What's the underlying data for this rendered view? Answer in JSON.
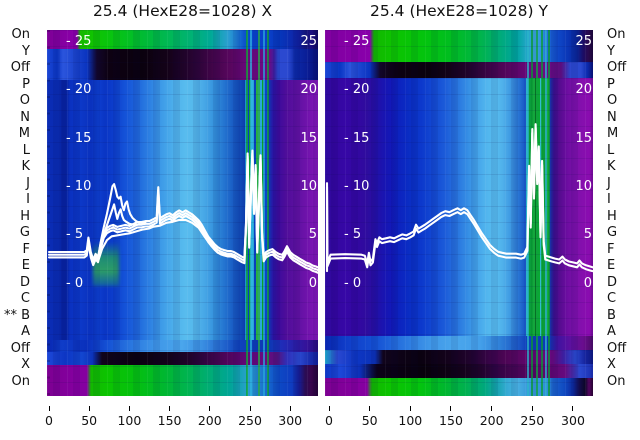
{
  "titles": {
    "left": "25.4 (HexE28=1028) X",
    "right": "25.4 (HexE28=1028) Y"
  },
  "colors": {
    "trace": "#ffffff",
    "inner_tick_text": "#ffffff",
    "axis_text": "#111111",
    "background": "#ffffff",
    "heat_blue": "#0a2cb4",
    "heat_green": "#0cc400",
    "heat_magenta": "#8a0cb0"
  },
  "axis_labels": {
    "left": [
      {
        "label": "On"
      },
      {
        "label": "Y"
      },
      {
        "label": "Off"
      },
      {
        "label": "P"
      },
      {
        "label": "O"
      },
      {
        "label": "N"
      },
      {
        "label": "M"
      },
      {
        "label": "L"
      },
      {
        "label": "K"
      },
      {
        "label": "J"
      },
      {
        "label": "I"
      },
      {
        "label": "H"
      },
      {
        "label": "G"
      },
      {
        "label": "F"
      },
      {
        "label": "E"
      },
      {
        "label": "D"
      },
      {
        "label": "C"
      },
      {
        "prefix": "**",
        "label": "B"
      },
      {
        "label": "A"
      },
      {
        "label": "Off"
      },
      {
        "label": "X"
      },
      {
        "label": "On"
      }
    ],
    "right": [
      {
        "label": "On"
      },
      {
        "label": "Y"
      },
      {
        "label": "Off"
      },
      {
        "label": "P"
      },
      {
        "label": "O"
      },
      {
        "label": "N"
      },
      {
        "label": "M"
      },
      {
        "label": "L"
      },
      {
        "label": "K"
      },
      {
        "label": "J"
      },
      {
        "label": "I"
      },
      {
        "label": "H"
      },
      {
        "label": "G"
      },
      {
        "label": "F"
      },
      {
        "label": "E"
      },
      {
        "label": "D"
      },
      {
        "label": "C"
      },
      {
        "label": "B"
      },
      {
        "label": "A"
      },
      {
        "label": "Off"
      },
      {
        "label": "X"
      },
      {
        "label": "On"
      }
    ]
  },
  "chart_data": [
    {
      "type": "heatmap",
      "title": "25.4 (HexE28=1028) X",
      "xlabel": "",
      "ylabel": "",
      "xlim": [
        -2.5,
        334.6
      ],
      "ylim_inner_scale": [
        -11.3,
        26.2
      ],
      "x_ticks": [
        0,
        50,
        100,
        150,
        200,
        250,
        300
      ],
      "y_axis": {
        "ticks": [
          {
            "left": "- 25",
            "right": "25",
            "value": 25
          },
          {
            "left": "- 20",
            "right": "20",
            "value": 20
          },
          {
            "left": "- 15",
            "right": "15",
            "value": 15
          },
          {
            "left": "- 10",
            "right": "10",
            "value": 10
          },
          {
            "left": "- 5",
            "right": "5",
            "value": 5
          },
          {
            "left": "- 0",
            "right": "0",
            "value": 0
          }
        ]
      },
      "line_series": [
        {
          "name": "trace-bundle-x",
          "offsets": [
            -0.28,
            0,
            0.28
          ],
          "points": [
            [
              0,
              3
            ],
            [
              44,
              3
            ],
            [
              47,
              3.2
            ],
            [
              49,
              4.5
            ],
            [
              52,
              3
            ],
            [
              55,
              2.2
            ],
            [
              58,
              2.8
            ],
            [
              61,
              2.5
            ],
            [
              64,
              3.8
            ],
            [
              68,
              5
            ],
            [
              72,
              5.5
            ],
            [
              76,
              5.7
            ],
            [
              80,
              5.8
            ],
            [
              85,
              5.6
            ],
            [
              90,
              5.7
            ],
            [
              95,
              5.8
            ],
            [
              100,
              5.7
            ],
            [
              105,
              5.9
            ],
            [
              110,
              6.1
            ],
            [
              115,
              6.1
            ],
            [
              120,
              6.2
            ],
            [
              125,
              6.2
            ],
            [
              130,
              6.4
            ],
            [
              134,
              6.6
            ],
            [
              135,
              8.2
            ],
            [
              136,
              9.7
            ],
            [
              137,
              8
            ],
            [
              138,
              6.5
            ],
            [
              142,
              6.7
            ],
            [
              146,
              6.9
            ],
            [
              150,
              7
            ],
            [
              154,
              6.8
            ],
            [
              158,
              7.1
            ],
            [
              162,
              7.3
            ],
            [
              166,
              7.1
            ],
            [
              170,
              7.3
            ],
            [
              174,
              7.1
            ],
            [
              178,
              6.9
            ],
            [
              182,
              6.6
            ],
            [
              186,
              6.3
            ],
            [
              190,
              5.8
            ],
            [
              194,
              5.2
            ],
            [
              198,
              4.6
            ],
            [
              202,
              4.2
            ],
            [
              206,
              3.8
            ],
            [
              210,
              3.5
            ],
            [
              214,
              3.3
            ],
            [
              218,
              3.2
            ],
            [
              222,
              3.1
            ],
            [
              226,
              3.1
            ],
            [
              230,
              3
            ],
            [
              234,
              2.8
            ],
            [
              240,
              2.5
            ],
            [
              243,
              2.4
            ],
            [
              245,
              6
            ],
            [
              247,
              13.2
            ],
            [
              249,
              4
            ],
            [
              251,
              9
            ],
            [
              253,
              13.5
            ],
            [
              255,
              7.5
            ],
            [
              257,
              12
            ],
            [
              259,
              3.5
            ],
            [
              261,
              8
            ],
            [
              263,
              13
            ],
            [
              265,
              5
            ],
            [
              267,
              2.6
            ],
            [
              270,
              3
            ],
            [
              274,
              3.2
            ],
            [
              278,
              3.3
            ],
            [
              282,
              3
            ],
            [
              286,
              2.8
            ],
            [
              290,
              2.7
            ],
            [
              293,
              3.1
            ],
            [
              296,
              3.6
            ],
            [
              300,
              3
            ],
            [
              304,
              2.7
            ],
            [
              308,
              2.5
            ],
            [
              312,
              2.3
            ],
            [
              316,
              2.1
            ],
            [
              320,
              1.9
            ],
            [
              324,
              1.8
            ],
            [
              328,
              1.6
            ],
            [
              332,
              1.5
            ],
            [
              335,
              1.4
            ]
          ]
        },
        {
          "name": "trace-peak-outer",
          "offsets": [
            0
          ],
          "points": [
            [
              61,
              2.5
            ],
            [
              64,
              4.2
            ],
            [
              68,
              5.8
            ],
            [
              72,
              7.2
            ],
            [
              76,
              8.8
            ],
            [
              79,
              10.1
            ],
            [
              81,
              10.3
            ],
            [
              83,
              9.7
            ],
            [
              85,
              9
            ],
            [
              87,
              8.8
            ],
            [
              89,
              9
            ],
            [
              91,
              8.1
            ],
            [
              93,
              7.6
            ],
            [
              95,
              8.3
            ],
            [
              97,
              8.5
            ],
            [
              99,
              7.7
            ],
            [
              101,
              7.2
            ],
            [
              104,
              6.8
            ],
            [
              108,
              6.5
            ],
            [
              112,
              6.3
            ],
            [
              116,
              6.3
            ],
            [
              120,
              6.3
            ]
          ]
        },
        {
          "name": "trace-peak-inner",
          "offsets": [
            0
          ],
          "points": [
            [
              61,
              2.5
            ],
            [
              66,
              4.6
            ],
            [
              71,
              5.8
            ],
            [
              76,
              7
            ],
            [
              81,
              8.2
            ],
            [
              83,
              7.4
            ],
            [
              85,
              6.7
            ],
            [
              87,
              7.3
            ],
            [
              89,
              7.7
            ],
            [
              91,
              7
            ],
            [
              93,
              6.6
            ],
            [
              96,
              6.4
            ],
            [
              100,
              6.2
            ],
            [
              105,
              6.1
            ],
            [
              110,
              6.1
            ]
          ]
        },
        {
          "name": "trace-low",
          "offsets": [
            0
          ],
          "points": [
            [
              61,
              2.3
            ],
            [
              66,
              3.6
            ],
            [
              72,
              4.5
            ],
            [
              78,
              4.9
            ],
            [
              85,
              5
            ],
            [
              92,
              5.1
            ],
            [
              100,
              5.2
            ],
            [
              108,
              5.4
            ],
            [
              116,
              5.6
            ],
            [
              124,
              5.7
            ],
            [
              130,
              5.9
            ],
            [
              138,
              6
            ],
            [
              146,
              6.3
            ],
            [
              154,
              6.4
            ],
            [
              162,
              6.6
            ],
            [
              170,
              6.6
            ],
            [
              178,
              6.3
            ],
            [
              186,
              5.8
            ],
            [
              194,
              4.8
            ],
            [
              202,
              3.9
            ],
            [
              210,
              3.2
            ],
            [
              218,
              3
            ],
            [
              226,
              2.9
            ],
            [
              232,
              2.8
            ]
          ]
        }
      ]
    },
    {
      "type": "heatmap",
      "title": "25.4 (HexE28=1028) Y",
      "xlabel": "",
      "ylabel": "",
      "xlim": [
        -4.9,
        324.6
      ],
      "ylim_inner_scale": [
        -11.3,
        26.2
      ],
      "x_ticks": [
        0,
        50,
        100,
        150,
        200,
        250,
        300
      ],
      "y_axis": {
        "ticks": [
          {
            "left": "- 25",
            "right": "25",
            "value": 25
          },
          {
            "left": "- 20",
            "right": "20",
            "value": 20
          },
          {
            "left": "- 15",
            "right": "15",
            "value": 15
          },
          {
            "left": "- 10",
            "right": "10",
            "value": 10
          },
          {
            "left": "- 5",
            "right": "5",
            "value": 5
          },
          {
            "left": "- 0",
            "right": "0",
            "value": 0
          }
        ]
      },
      "line_series": [
        {
          "name": "trace-bundle-y",
          "offsets": [
            -0.2,
            0.2
          ],
          "points": [
            [
              -2.5,
              1.5
            ],
            [
              -2.5,
              10.2
            ],
            [
              -2,
              2
            ],
            [
              2,
              2.8
            ],
            [
              20,
              2.85
            ],
            [
              40,
              2.8
            ],
            [
              44,
              2.7
            ],
            [
              47,
              1.9
            ],
            [
              49,
              3
            ],
            [
              51,
              2.1
            ],
            [
              54,
              2.4
            ],
            [
              57,
              4.4
            ],
            [
              59,
              4
            ],
            [
              62,
              4.6
            ],
            [
              65,
              4.4
            ],
            [
              70,
              4.5
            ],
            [
              75,
              4.6
            ],
            [
              80,
              4.5
            ],
            [
              85,
              4.7
            ],
            [
              90,
              4.9
            ],
            [
              95,
              4.8
            ],
            [
              100,
              5
            ],
            [
              104,
              5.2
            ],
            [
              107,
              5.9
            ],
            [
              110,
              5.5
            ],
            [
              114,
              5.7
            ],
            [
              118,
              5.9
            ],
            [
              123,
              6.2
            ],
            [
              128,
              6.5
            ],
            [
              133,
              6.8
            ],
            [
              138,
              7.1
            ],
            [
              143,
              7.3
            ],
            [
              148,
              7.2
            ],
            [
              153,
              7.4
            ],
            [
              158,
              7.6
            ],
            [
              162,
              7.4
            ],
            [
              166,
              7.6
            ],
            [
              170,
              7.4
            ],
            [
              174,
              6.9
            ],
            [
              178,
              6.4
            ],
            [
              183,
              5.7
            ],
            [
              188,
              5
            ],
            [
              193,
              4.4
            ],
            [
              198,
              3.8
            ],
            [
              203,
              3.4
            ],
            [
              208,
              3.1
            ],
            [
              213,
              3
            ],
            [
              218,
              2.9
            ],
            [
              224,
              2.9
            ],
            [
              230,
              2.9
            ],
            [
              236,
              2.8
            ],
            [
              240,
              2.9
            ],
            [
              244,
              3.6
            ],
            [
              246,
              12
            ],
            [
              248,
              6
            ],
            [
              250,
              15.8
            ],
            [
              252,
              9
            ],
            [
              254,
              16.3
            ],
            [
              256,
              10.5
            ],
            [
              258,
              14
            ],
            [
              260,
              5
            ],
            [
              262,
              12.5
            ],
            [
              264,
              4.2
            ],
            [
              266,
              2.7
            ],
            [
              270,
              2.6
            ],
            [
              274,
              2.5
            ],
            [
              278,
              2.4
            ],
            [
              283,
              2.3
            ],
            [
              287,
              2.6
            ],
            [
              290,
              2.3
            ],
            [
              295,
              2.1
            ],
            [
              300,
              2
            ],
            [
              305,
              1.9
            ],
            [
              308,
              2.2
            ],
            [
              311,
              1.9
            ],
            [
              316,
              1.7
            ],
            [
              320,
              1.6
            ],
            [
              324,
              1.5
            ]
          ]
        }
      ]
    }
  ]
}
